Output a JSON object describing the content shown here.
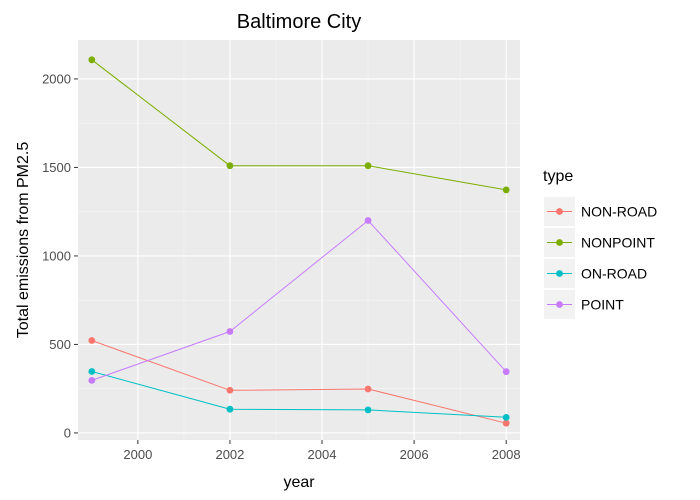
{
  "chart_data": {
    "type": "line",
    "title": "Baltimore City",
    "xlabel": "year",
    "ylabel": "Total emissions from PM2.5",
    "x": [
      1999,
      2002,
      2005,
      2008
    ],
    "xlim": [
      1998.7,
      2008.3
    ],
    "ylim": [
      -40,
      2220
    ],
    "x_ticks": [
      2000,
      2002,
      2004,
      2006,
      2008
    ],
    "y_ticks": [
      0,
      500,
      1000,
      1500,
      2000
    ],
    "grid": true,
    "legend": {
      "title": "type",
      "position": "right"
    },
    "series": [
      {
        "name": "NON-ROAD",
        "color": "#F8766D",
        "values": [
          522,
          241,
          248,
          55
        ]
      },
      {
        "name": "NONPOINT",
        "color": "#7CAE00",
        "values": [
          2108,
          1510,
          1510,
          1373
        ]
      },
      {
        "name": "ON-ROAD",
        "color": "#00BFC4",
        "values": [
          347,
          134,
          130,
          88
        ]
      },
      {
        "name": "POINT",
        "color": "#C77CFF",
        "values": [
          297,
          573,
          1200,
          346
        ]
      }
    ]
  }
}
